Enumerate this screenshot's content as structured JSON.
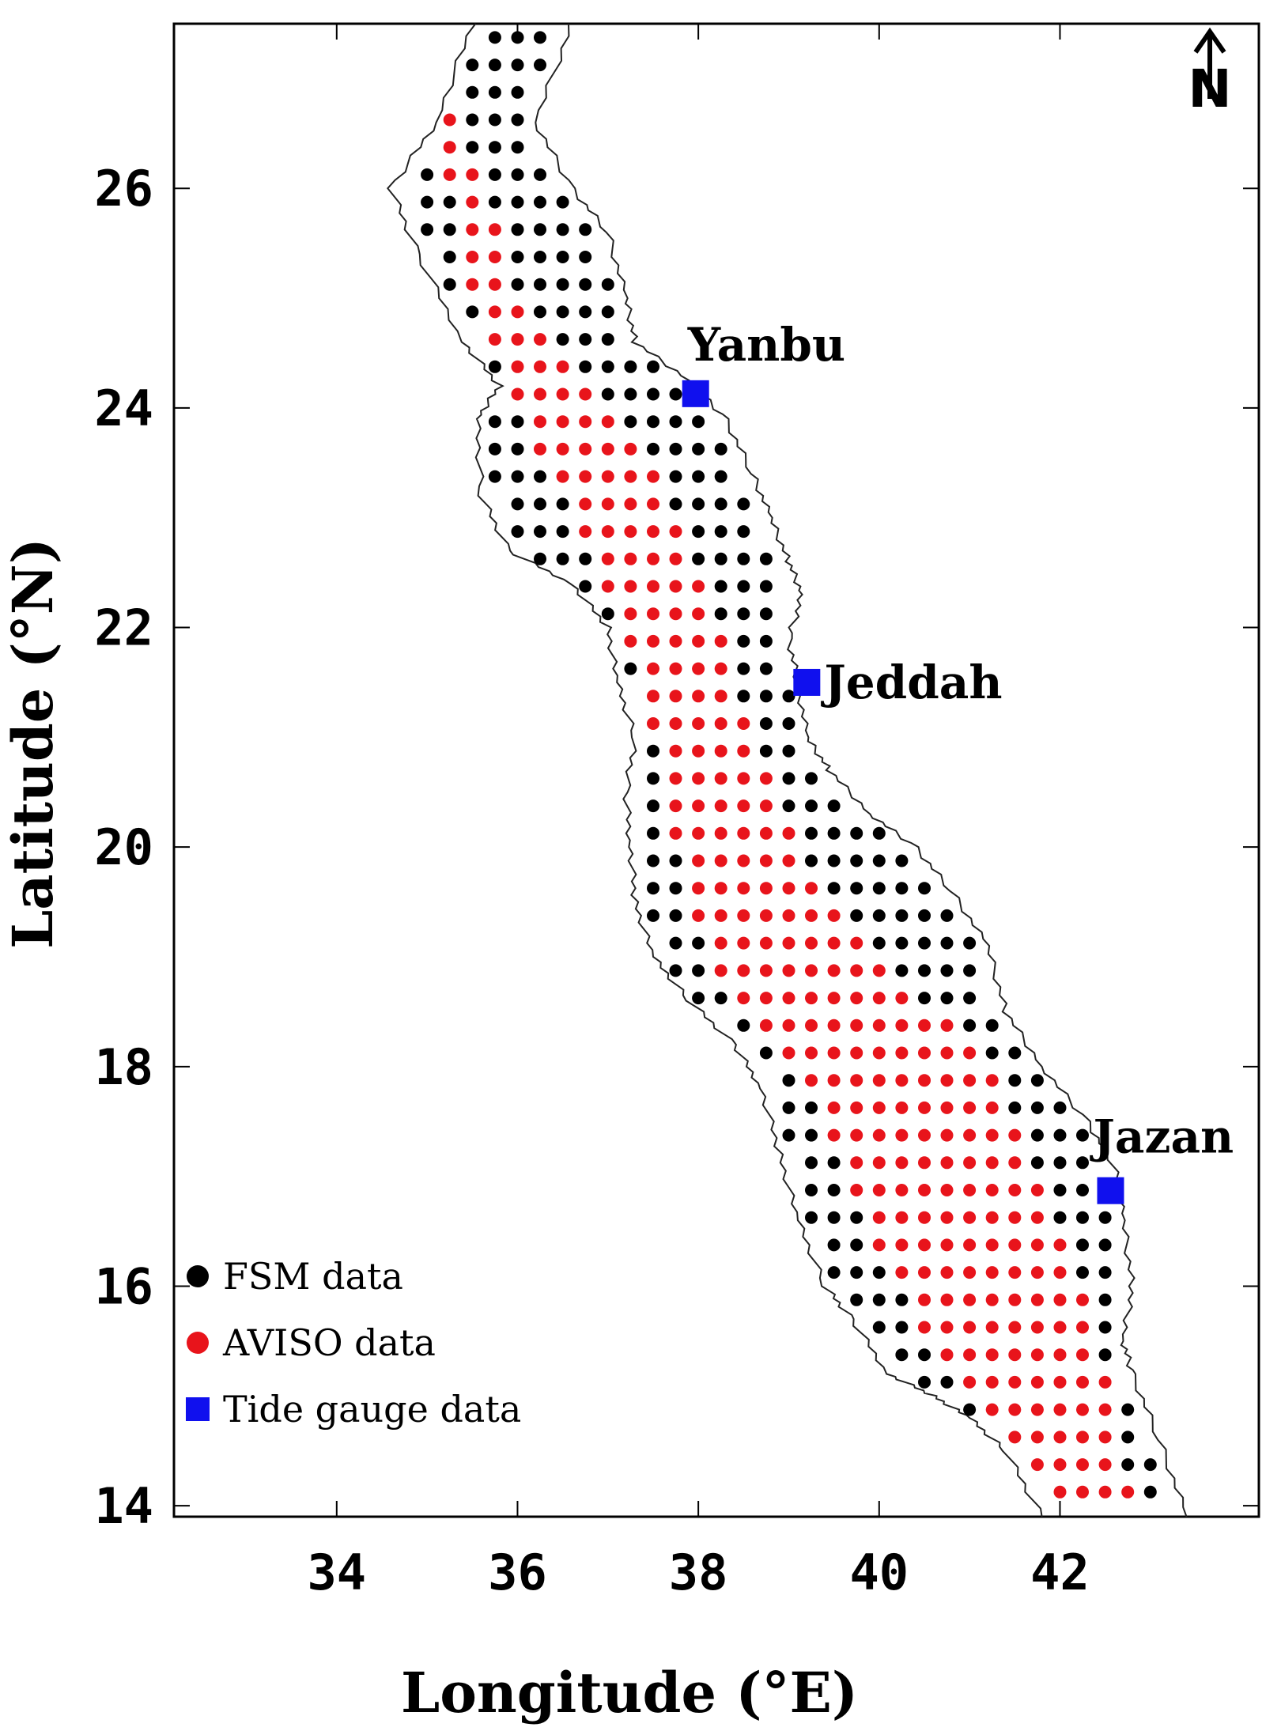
{
  "map": {
    "region": "Red Sea",
    "north_label": "N",
    "xlabel": "Longitude (°E)",
    "ylabel": "Latitude (°N)",
    "xlim": [
      32.2,
      44.2
    ],
    "ylim": [
      13.9,
      27.5
    ],
    "x_ticks": [
      34,
      36,
      38,
      40,
      42
    ],
    "y_ticks": [
      14,
      16,
      18,
      20,
      22,
      24,
      26
    ],
    "colors": {
      "fsm": "#000000",
      "aviso": "#e8141b",
      "gauge": "#1010ee",
      "coast": "#222222"
    },
    "grid_step_deg": 0.25,
    "coast_east": [
      [
        36.6,
        27.5
      ],
      [
        36.2,
        26.6
      ],
      [
        36.6,
        26.0
      ],
      [
        37.0,
        25.6
      ],
      [
        37.2,
        25.0
      ],
      [
        37.3,
        24.6
      ],
      [
        37.9,
        24.25
      ],
      [
        38.3,
        23.9
      ],
      [
        38.6,
        23.4
      ],
      [
        38.8,
        23.0
      ],
      [
        39.0,
        22.6
      ],
      [
        39.15,
        22.3
      ],
      [
        39.0,
        21.9
      ],
      [
        39.1,
        21.5
      ],
      [
        39.2,
        21.0
      ],
      [
        39.45,
        20.7
      ],
      [
        39.9,
        20.3
      ],
      [
        40.4,
        20.0
      ],
      [
        40.8,
        19.6
      ],
      [
        41.2,
        19.1
      ],
      [
        41.4,
        18.5
      ],
      [
        41.8,
        18.0
      ],
      [
        42.3,
        17.5
      ],
      [
        42.6,
        17.1
      ],
      [
        42.7,
        16.6
      ],
      [
        42.8,
        16.0
      ],
      [
        42.7,
        15.5
      ],
      [
        42.8,
        15.2
      ],
      [
        43.1,
        14.6
      ],
      [
        43.4,
        13.9
      ]
    ],
    "coast_west": [
      [
        35.5,
        27.5
      ],
      [
        35.1,
        26.6
      ],
      [
        34.6,
        26.0
      ],
      [
        34.9,
        25.4
      ],
      [
        35.4,
        24.6
      ],
      [
        35.8,
        24.2
      ],
      [
        35.55,
        23.9
      ],
      [
        35.6,
        23.2
      ],
      [
        35.9,
        22.7
      ],
      [
        36.6,
        22.4
      ],
      [
        37.0,
        22.0
      ],
      [
        37.1,
        21.5
      ],
      [
        37.3,
        21.0
      ],
      [
        37.2,
        20.5
      ],
      [
        37.25,
        20.0
      ],
      [
        37.3,
        19.5
      ],
      [
        37.5,
        19.0
      ],
      [
        37.9,
        18.6
      ],
      [
        38.4,
        18.2
      ],
      [
        38.7,
        17.8
      ],
      [
        38.9,
        17.2
      ],
      [
        39.1,
        16.6
      ],
      [
        39.4,
        16.0
      ],
      [
        39.7,
        15.7
      ],
      [
        40.1,
        15.2
      ],
      [
        40.6,
        15.0
      ],
      [
        41.0,
        14.8
      ],
      [
        41.4,
        14.5
      ],
      [
        41.8,
        13.9
      ]
    ],
    "aviso_band": [
      [
        27.5,
        34.65,
        35.1
      ],
      [
        26.5,
        34.8,
        35.3
      ],
      [
        26.0,
        35.25,
        35.7
      ],
      [
        25.0,
        35.5,
        36.0
      ],
      [
        24.2,
        35.9,
        36.8
      ],
      [
        23.5,
        36.3,
        37.5
      ],
      [
        22.5,
        36.9,
        38.0
      ],
      [
        21.5,
        37.4,
        38.4
      ],
      [
        20.5,
        37.6,
        38.8
      ],
      [
        19.5,
        37.9,
        39.4
      ],
      [
        18.7,
        38.3,
        40.4
      ],
      [
        18.0,
        39.1,
        41.3
      ],
      [
        17.0,
        39.6,
        41.8
      ],
      [
        16.0,
        40.2,
        42.2
      ],
      [
        15.0,
        40.9,
        42.6
      ],
      [
        14.0,
        42.0,
        42.8
      ]
    ],
    "tide_gauges": [
      {
        "name": "Yanbu",
        "lon": 37.97,
        "lat": 24.13
      },
      {
        "name": "Jeddah",
        "lon": 39.2,
        "lat": 21.5
      },
      {
        "name": "Jazan",
        "lon": 42.56,
        "lat": 16.87
      }
    ],
    "legend": [
      {
        "label": "FSM data",
        "symbol": "circle",
        "color": "#000000"
      },
      {
        "label": "AVISO data",
        "symbol": "circle",
        "color": "#e8141b"
      },
      {
        "label": "Tide gauge data",
        "symbol": "square",
        "color": "#1010ee"
      }
    ]
  }
}
